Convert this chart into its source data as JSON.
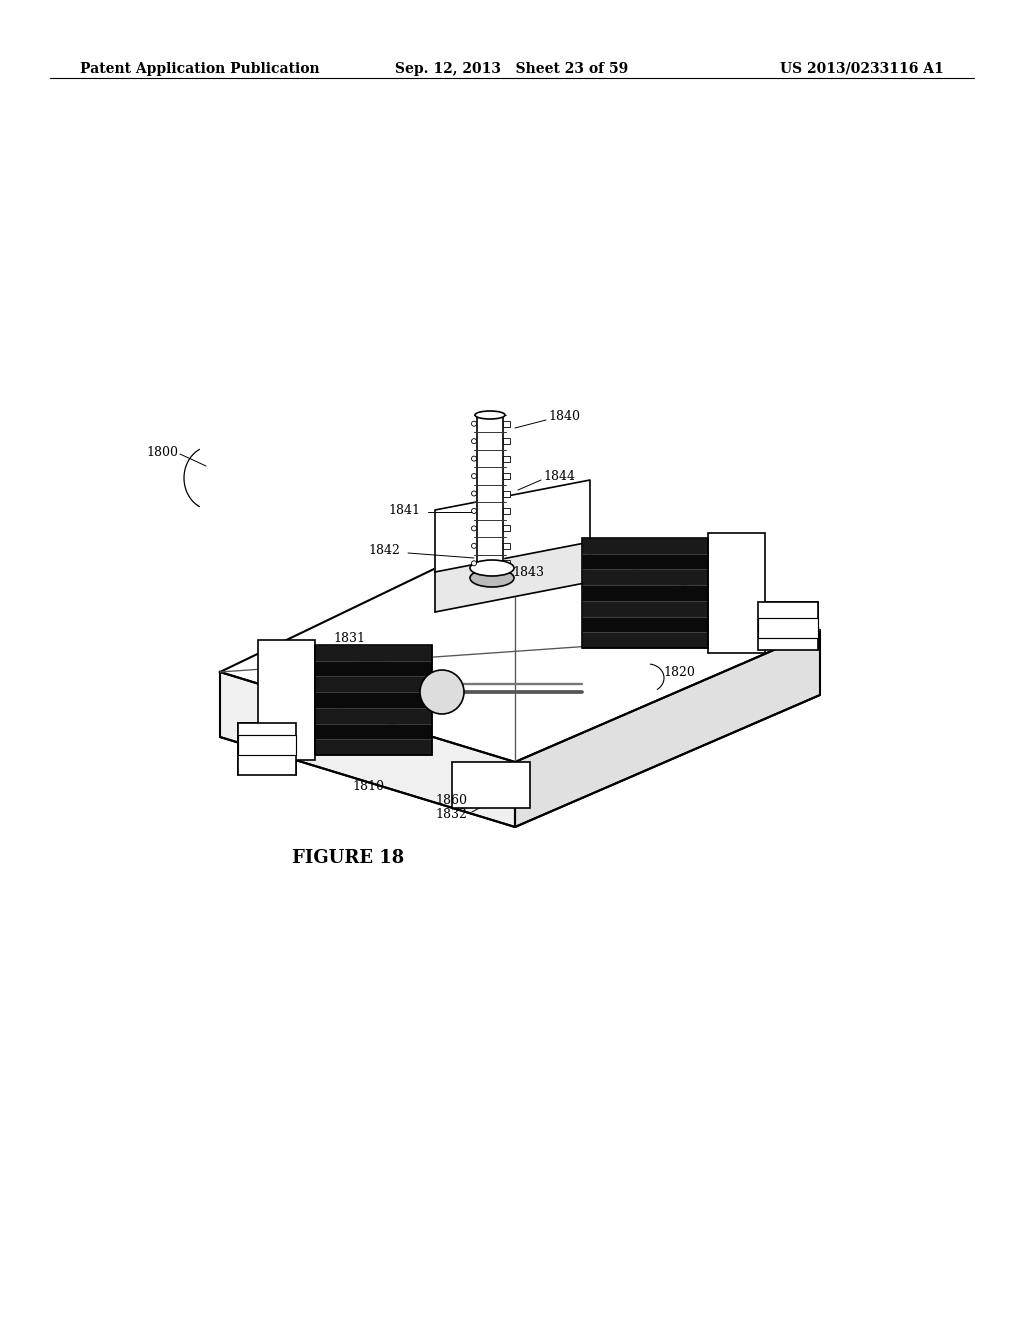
{
  "bg_color": "#ffffff",
  "header_left": "Patent Application Publication",
  "header_mid": "Sep. 12, 2013   Sheet 23 of 59",
  "header_right": "US 2013/0233116 A1",
  "figure_caption": "FIGURE 18",
  "label_1800": "1800",
  "label_1810": "1810",
  "label_1820": "1820",
  "label_1831": "1831",
  "label_1832": "1832",
  "label_1840": "1840",
  "label_1841": "1841",
  "label_1842": "1842",
  "label_1843": "1843",
  "label_1844": "1844",
  "label_1860": "1860",
  "line_color": "#000000",
  "text_color": "#000000",
  "line_width": 1.2,
  "font_size_header": 10,
  "font_size_label": 9,
  "font_size_caption": 13
}
